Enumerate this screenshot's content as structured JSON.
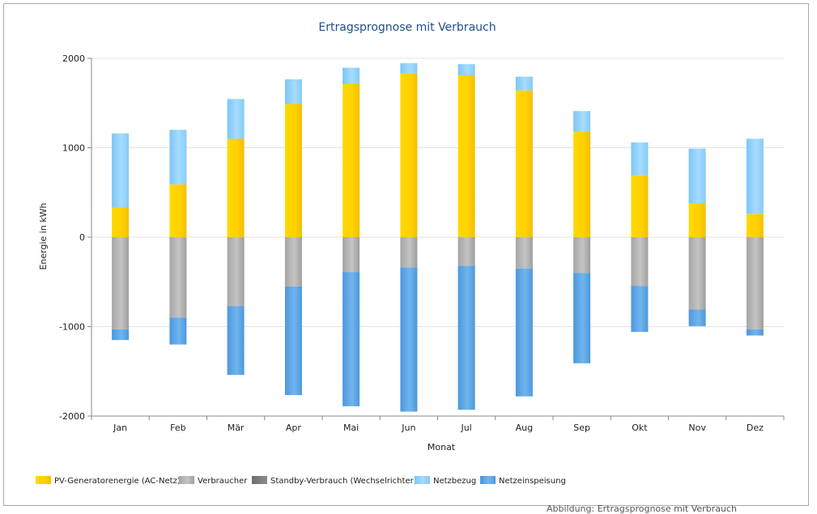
{
  "chart_data": {
    "type": "bar",
    "stacked": true,
    "title": "Ertragsprognose mit Verbrauch",
    "xlabel": "Monat",
    "ylabel": "Energie in kWh",
    "ylim": [
      -2000,
      2000
    ],
    "yticks": [
      2000,
      1000,
      0,
      -1000,
      -2000
    ],
    "ytick_labels": [
      "2000",
      "1000",
      "0",
      "-1000",
      "-2000"
    ],
    "grid": true,
    "legend_position": "bottom-left",
    "categories": [
      "Jan",
      "Feb",
      "Mär",
      "Apr",
      "Mai",
      "Jun",
      "Jul",
      "Aug",
      "Sep",
      "Okt",
      "Nov",
      "Dez"
    ],
    "series": [
      {
        "name": "PV-Generatorenergie (AC-Netz)",
        "color": "#f7c800",
        "values": [
          330,
          590,
          1100,
          1490,
          1710,
          1830,
          1810,
          1640,
          1180,
          690,
          380,
          260
        ]
      },
      {
        "name": "Verbraucher",
        "color": "#b4b4b4",
        "values": [
          -1030,
          -900,
          -770,
          -550,
          -390,
          -340,
          -320,
          -350,
          -400,
          -545,
          -810,
          -1030
        ]
      },
      {
        "name": "Standby-Verbrauch (Wechselrichter)",
        "color": "#7d7d7d",
        "values": [
          0,
          0,
          0,
          0,
          0,
          0,
          0,
          0,
          0,
          0,
          0,
          0
        ]
      },
      {
        "name": "Netzbezug",
        "color": "#8fd1fb",
        "values": [
          830,
          610,
          445,
          275,
          185,
          115,
          125,
          155,
          230,
          370,
          610,
          840
        ]
      },
      {
        "name": "Netzeinspeisung",
        "color": "#5aa5e6",
        "values": [
          -120,
          -300,
          -770,
          -1215,
          -1500,
          -1610,
          -1610,
          -1430,
          -1010,
          -515,
          -185,
          -70
        ]
      }
    ]
  },
  "caption": "Abbildung: Ertragsprognose mit Verbrauch"
}
